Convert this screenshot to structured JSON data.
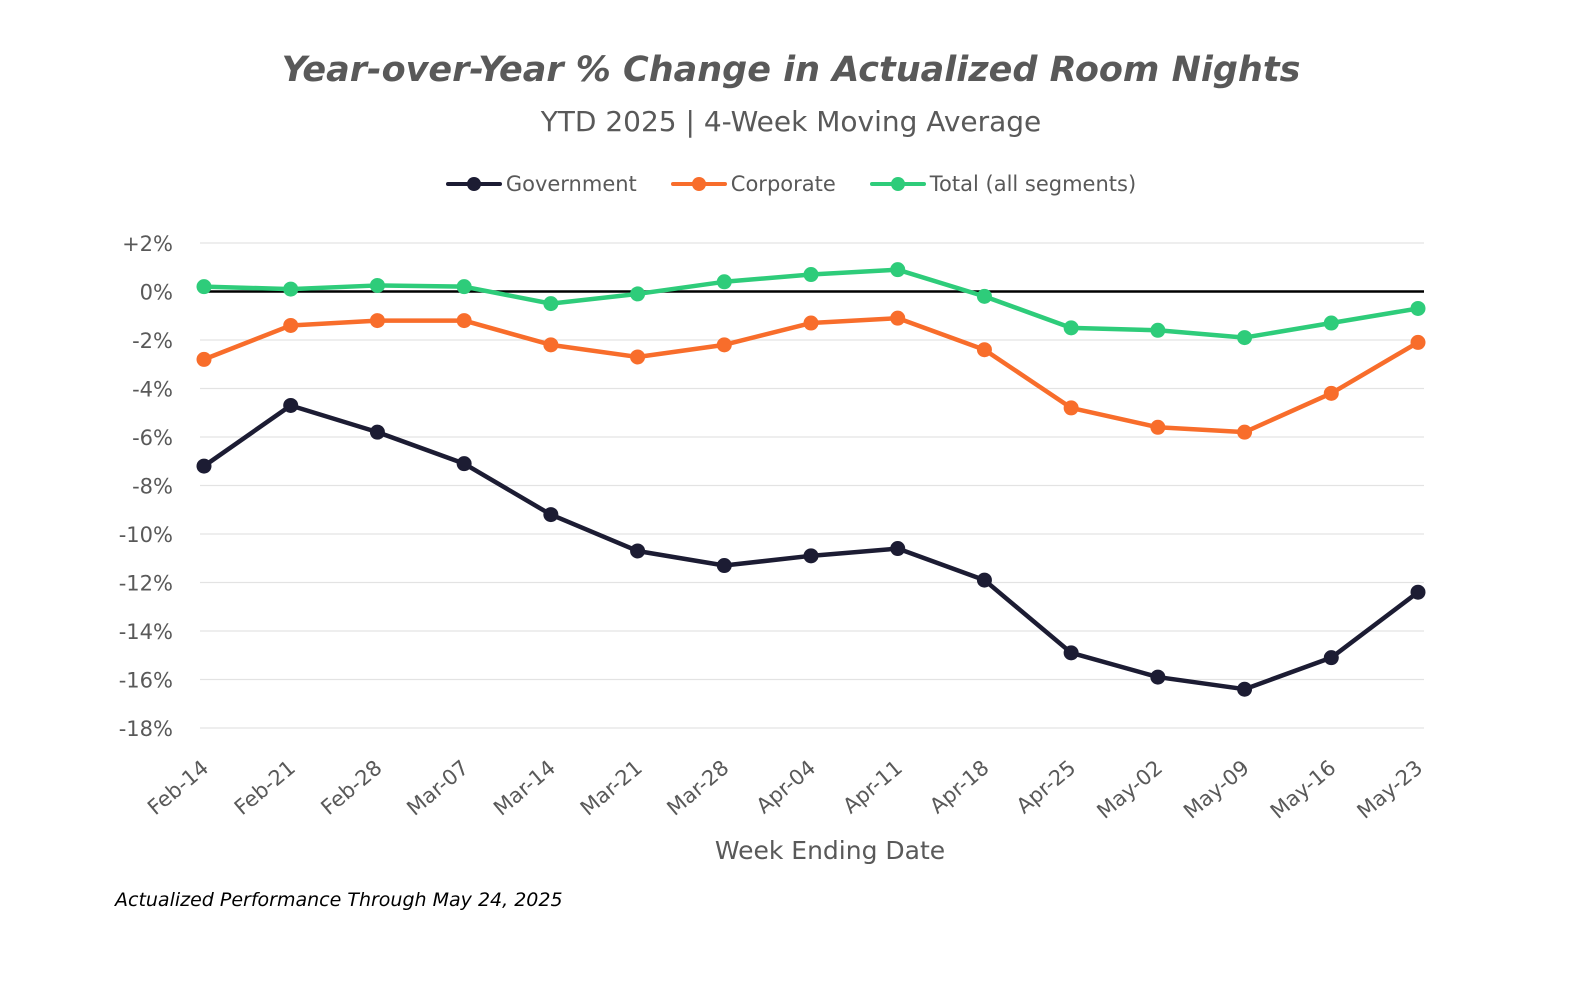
{
  "chart_data": {
    "type": "line",
    "title": "Year-over-Year % Change in Actualized Room Nights",
    "subtitle": "YTD 2025 | 4-Week Moving Average",
    "xlabel": "Week Ending Date",
    "ylabel": "",
    "ylim": [
      -18,
      2
    ],
    "y_ticks": [
      2,
      0,
      -2,
      -4,
      -6,
      -8,
      -10,
      -12,
      -14,
      -16,
      -18
    ],
    "y_tick_labels": [
      "+2%",
      "0%",
      "-2%",
      "-4%",
      "-6%",
      "-8%",
      "-10%",
      "-12%",
      "-14%",
      "-16%",
      "-18%"
    ],
    "grid": true,
    "legend_position": "top-center",
    "categories": [
      "Feb-14",
      "Feb-21",
      "Feb-28",
      "Mar-07",
      "Mar-14",
      "Mar-21",
      "Mar-28",
      "Apr-04",
      "Apr-11",
      "Apr-18",
      "Apr-25",
      "May-02",
      "May-09",
      "May-16",
      "May-23"
    ],
    "series": [
      {
        "name": "Government",
        "color": "#1c1c33",
        "values": [
          -7.2,
          -4.7,
          -5.8,
          -7.1,
          -9.2,
          -10.7,
          -11.3,
          -10.9,
          -10.6,
          -11.9,
          -14.9,
          -15.9,
          -16.4,
          -15.1,
          -12.4
        ]
      },
      {
        "name": "Corporate",
        "color": "#f86d2b",
        "values": [
          -2.8,
          -1.4,
          -1.2,
          -1.2,
          -2.2,
          -2.7,
          -2.2,
          -1.3,
          -1.1,
          -2.4,
          -4.8,
          -5.6,
          -5.8,
          -4.2,
          -2.1
        ]
      },
      {
        "name": "Total (all segments)",
        "color": "#2ecc7a",
        "values": [
          0.2,
          0.1,
          0.25,
          0.2,
          -0.5,
          -0.1,
          0.4,
          0.7,
          0.9,
          -0.2,
          -1.5,
          -1.6,
          -1.9,
          -1.3,
          -0.7
        ]
      }
    ],
    "footnote": "Actualized Performance Through May 24, 2025"
  }
}
